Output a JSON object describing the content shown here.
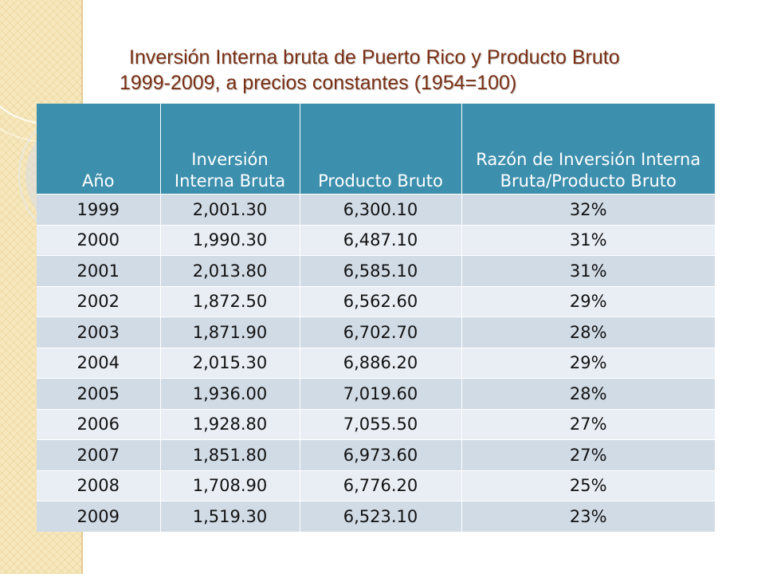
{
  "title": {
    "line1": "Inversión Interna bruta de Puerto Rico y Producto Bruto",
    "line2": "1999-2009, a precios constantes (1954=100)"
  },
  "table": {
    "headers": [
      "Año",
      "Inversión Interna Bruta",
      "Producto Bruto",
      "Razón de  Inversión Interna Bruta/Producto Bruto"
    ],
    "rows": [
      [
        "1999",
        "2,001.30",
        "6,300.10",
        "32%"
      ],
      [
        "2000",
        "1,990.30",
        "6,487.10",
        "31%"
      ],
      [
        "2001",
        "2,013.80",
        "6,585.10",
        "31%"
      ],
      [
        "2002",
        "1,872.50",
        "6,562.60",
        "29%"
      ],
      [
        "2003",
        "1,871.90",
        "6,702.70",
        "28%"
      ],
      [
        "2004",
        "2,015.30",
        "6,886.20",
        "29%"
      ],
      [
        "2005",
        "1,936.00",
        "7,019.60",
        "28%"
      ],
      [
        "2006",
        "1,928.80",
        "7,055.50",
        "27%"
      ],
      [
        "2007",
        "1,851.80",
        "6,973.60",
        "27%"
      ],
      [
        "2008",
        "1,708.90",
        "6,776.20",
        "25%"
      ],
      [
        "2009",
        "1,519.30",
        "6,523.10",
        "23%"
      ]
    ]
  },
  "colors": {
    "header_bg": "#3c8fad",
    "row_odd": "#d1dbe6",
    "row_even": "#e9eef4",
    "title": "#7a2f13",
    "side_band": "#f6e7bc"
  }
}
